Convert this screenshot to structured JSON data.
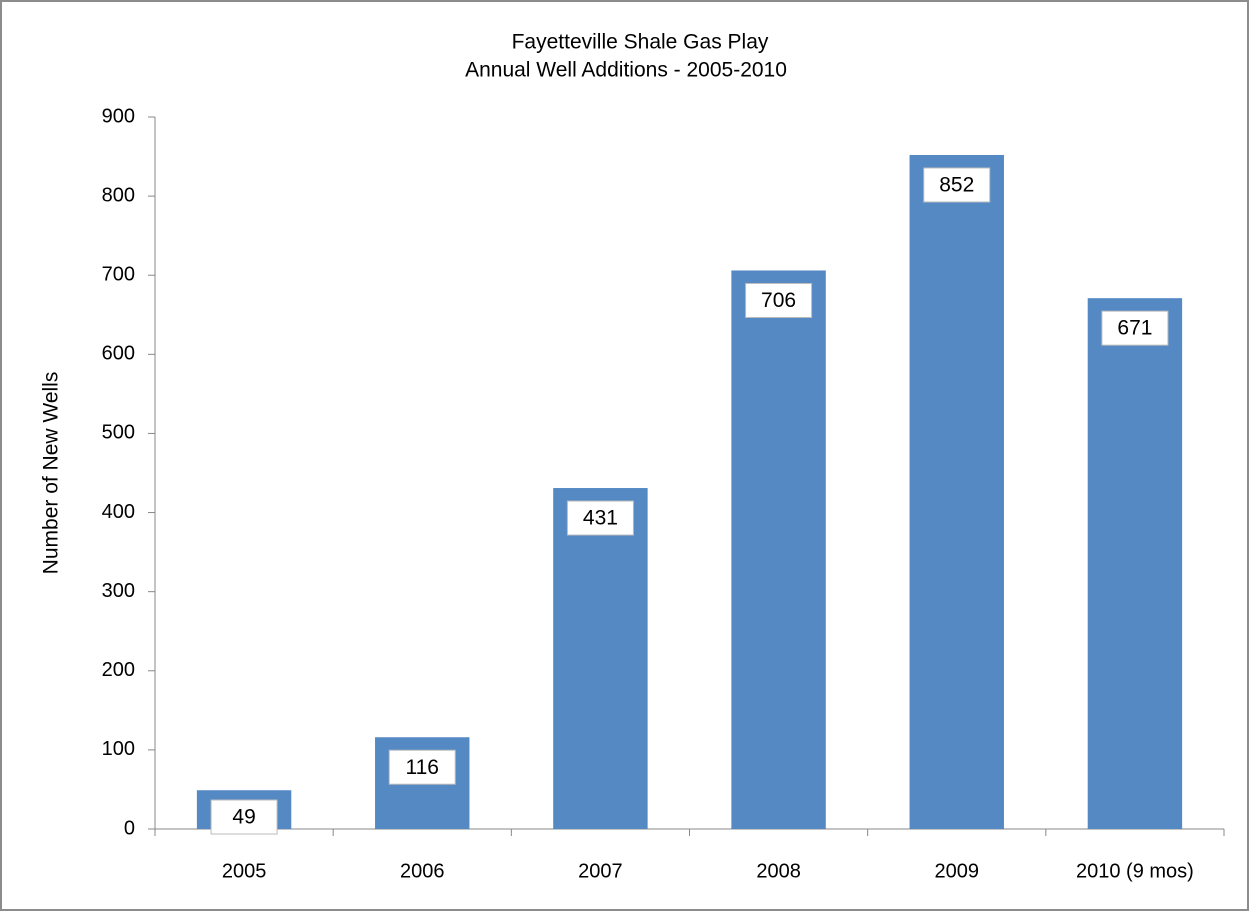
{
  "chart_data": {
    "type": "bar",
    "title": "Fayetteville Shale Gas Play",
    "subtitle": "Annual Well Additions - 2005-2010",
    "y_label": "Number of New Wells",
    "categories": [
      "2005",
      "2006",
      "2007",
      "2008",
      "2009",
      "2010 (9 mos)"
    ],
    "values": [
      49,
      116,
      431,
      706,
      852,
      671
    ],
    "color": "#5589c4",
    "ylim": [
      0,
      900
    ],
    "yticks": [
      0,
      100,
      200,
      300,
      400,
      500,
      600,
      700,
      800,
      900
    ],
    "grid": false
  }
}
